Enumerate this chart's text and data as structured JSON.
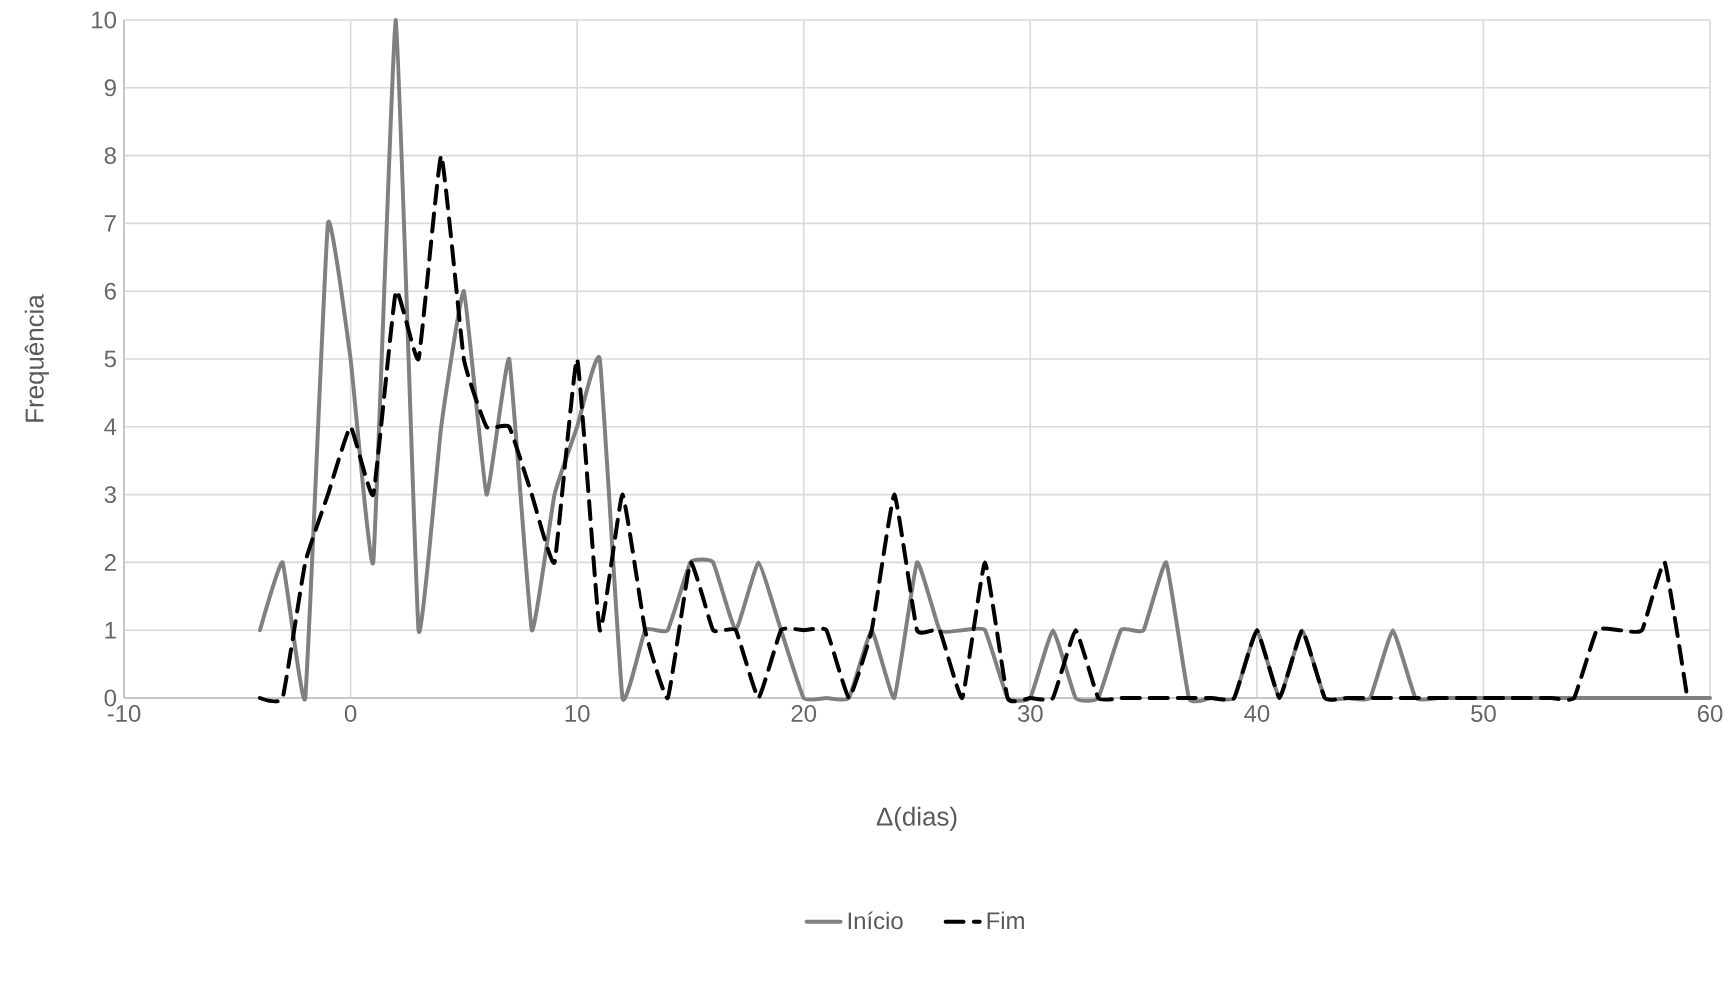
{
  "chart_data": {
    "type": "line",
    "xlabel": "Δ(dias)",
    "ylabel": "Frequência",
    "xlim": [
      -10,
      60
    ],
    "xticks": [
      -10,
      0,
      10,
      20,
      30,
      40,
      50,
      60
    ],
    "ylim": [
      0,
      10
    ],
    "yticks": [
      0,
      1,
      2,
      3,
      4,
      5,
      6,
      7,
      8,
      9,
      10
    ],
    "grid": true,
    "legend": "bottom",
    "marker": "none",
    "series": [
      {
        "name": "Início",
        "color": "#808080",
        "line_style": "solid",
        "x": [
          -4,
          -3,
          -2,
          -1,
          0,
          1,
          2,
          3,
          4,
          5,
          6,
          7,
          8,
          9,
          10,
          11,
          12,
          13,
          14,
          15,
          16,
          17,
          18,
          19,
          20,
          21,
          22,
          23,
          24,
          25,
          26,
          27,
          28,
          29,
          30,
          31,
          32,
          33,
          34,
          35,
          36,
          37,
          38,
          39,
          40,
          41,
          42,
          43,
          44,
          45,
          46,
          47,
          48,
          49,
          50,
          51,
          52,
          53,
          54,
          55,
          56,
          57,
          58,
          59,
          60
        ],
        "values": [
          1,
          2,
          0,
          7,
          5,
          2,
          10,
          1,
          4,
          6,
          3,
          5,
          1,
          3,
          4,
          5,
          0,
          1,
          1,
          2,
          2,
          1,
          2,
          1,
          0,
          0,
          0,
          1,
          0,
          2,
          1,
          1,
          1,
          0,
          0,
          1,
          0,
          0,
          1,
          1,
          2,
          0,
          0,
          0,
          1,
          0,
          1,
          0,
          0,
          0,
          1,
          0,
          0,
          0,
          0,
          0,
          0,
          0,
          0,
          0,
          0,
          0,
          0,
          0,
          0
        ]
      },
      {
        "name": "Fim",
        "color": "#000000",
        "line_style": "dashed",
        "x": [
          -4,
          -3,
          -2,
          -1,
          0,
          1,
          2,
          3,
          4,
          5,
          6,
          7,
          8,
          9,
          10,
          11,
          12,
          13,
          14,
          15,
          16,
          17,
          18,
          19,
          20,
          21,
          22,
          23,
          24,
          25,
          26,
          27,
          28,
          29,
          30,
          31,
          32,
          33,
          34,
          35,
          36,
          37,
          38,
          39,
          40,
          41,
          42,
          43,
          44,
          45,
          46,
          47,
          48,
          49,
          50,
          51,
          52,
          53,
          54,
          55,
          56,
          57,
          58,
          59
        ],
        "values": [
          0,
          0,
          2,
          3,
          4,
          3,
          6,
          5,
          8,
          5,
          4,
          4,
          3,
          2,
          5,
          1,
          3,
          1,
          0,
          2,
          1,
          1,
          0,
          1,
          1,
          1,
          0,
          1,
          3,
          1,
          1,
          0,
          2,
          0,
          0,
          0,
          1,
          0,
          0,
          0,
          0,
          0,
          0,
          0,
          1,
          0,
          1,
          0,
          0,
          0,
          0,
          0,
          0,
          0,
          0,
          0,
          0,
          0,
          0,
          1,
          1,
          1,
          2,
          0
        ]
      }
    ]
  }
}
